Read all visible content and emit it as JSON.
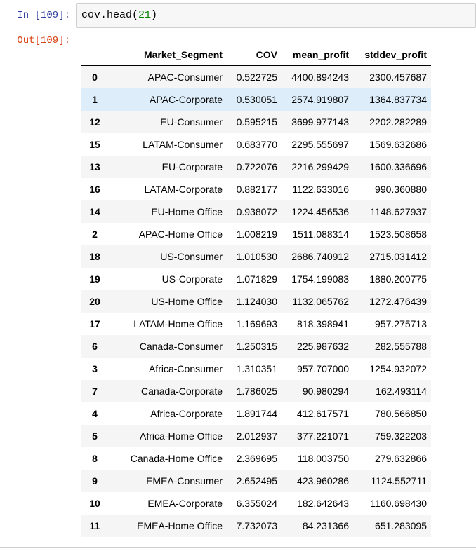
{
  "input_cell": {
    "prompt": "In [109]:",
    "code_prefix": "cov.head(",
    "code_arg": "21",
    "code_suffix": ")"
  },
  "output_cell": {
    "prompt": "Out[109]:"
  },
  "table": {
    "columns": [
      "",
      "Market_Segment",
      "COV",
      "mean_profit",
      "stddev_profit"
    ],
    "rows": [
      {
        "index": "0",
        "segment": "APAC-Consumer",
        "cov": "0.522725",
        "mean_profit": "4400.894243",
        "stddev_profit": "2300.457687"
      },
      {
        "index": "1",
        "segment": "APAC-Corporate",
        "cov": "0.530051",
        "mean_profit": "2574.919807",
        "stddev_profit": "1364.837734"
      },
      {
        "index": "12",
        "segment": "EU-Consumer",
        "cov": "0.595215",
        "mean_profit": "3699.977143",
        "stddev_profit": "2202.282289"
      },
      {
        "index": "15",
        "segment": "LATAM-Consumer",
        "cov": "0.683770",
        "mean_profit": "2295.555697",
        "stddev_profit": "1569.632686"
      },
      {
        "index": "13",
        "segment": "EU-Corporate",
        "cov": "0.722076",
        "mean_profit": "2216.299429",
        "stddev_profit": "1600.336696"
      },
      {
        "index": "16",
        "segment": "LATAM-Corporate",
        "cov": "0.882177",
        "mean_profit": "1122.633016",
        "stddev_profit": "990.360880"
      },
      {
        "index": "14",
        "segment": "EU-Home Office",
        "cov": "0.938072",
        "mean_profit": "1224.456536",
        "stddev_profit": "1148.627937"
      },
      {
        "index": "2",
        "segment": "APAC-Home Office",
        "cov": "1.008219",
        "mean_profit": "1511.088314",
        "stddev_profit": "1523.508658"
      },
      {
        "index": "18",
        "segment": "US-Consumer",
        "cov": "1.010530",
        "mean_profit": "2686.740912",
        "stddev_profit": "2715.031412"
      },
      {
        "index": "19",
        "segment": "US-Corporate",
        "cov": "1.071829",
        "mean_profit": "1754.199083",
        "stddev_profit": "1880.200775"
      },
      {
        "index": "20",
        "segment": "US-Home Office",
        "cov": "1.124030",
        "mean_profit": "1132.065762",
        "stddev_profit": "1272.476439"
      },
      {
        "index": "17",
        "segment": "LATAM-Home Office",
        "cov": "1.169693",
        "mean_profit": "818.398941",
        "stddev_profit": "957.275713"
      },
      {
        "index": "6",
        "segment": "Canada-Consumer",
        "cov": "1.250315",
        "mean_profit": "225.987632",
        "stddev_profit": "282.555788"
      },
      {
        "index": "3",
        "segment": "Africa-Consumer",
        "cov": "1.310351",
        "mean_profit": "957.707000",
        "stddev_profit": "1254.932072"
      },
      {
        "index": "7",
        "segment": "Canada-Corporate",
        "cov": "1.786025",
        "mean_profit": "90.980294",
        "stddev_profit": "162.493114"
      },
      {
        "index": "4",
        "segment": "Africa-Corporate",
        "cov": "1.891744",
        "mean_profit": "412.617571",
        "stddev_profit": "780.566850"
      },
      {
        "index": "5",
        "segment": "Africa-Home Office",
        "cov": "2.012937",
        "mean_profit": "377.221071",
        "stddev_profit": "759.322203"
      },
      {
        "index": "8",
        "segment": "Canada-Home Office",
        "cov": "2.369695",
        "mean_profit": "118.003750",
        "stddev_profit": "279.632866"
      },
      {
        "index": "9",
        "segment": "EMEA-Consumer",
        "cov": "2.652495",
        "mean_profit": "423.960286",
        "stddev_profit": "1124.552711"
      },
      {
        "index": "10",
        "segment": "EMEA-Corporate",
        "cov": "6.355024",
        "mean_profit": "182.642643",
        "stddev_profit": "1160.698430"
      },
      {
        "index": "11",
        "segment": "EMEA-Home Office",
        "cov": "7.732073",
        "mean_profit": "84.231366",
        "stddev_profit": "651.283095"
      }
    ],
    "hovered_row_position": 1
  },
  "colors": {
    "in_prompt": "#303f9f",
    "out_prompt": "#d84315",
    "code_number": "#008000",
    "row_stripe": "#f5f5f5",
    "row_hover": "#ddeefa"
  }
}
